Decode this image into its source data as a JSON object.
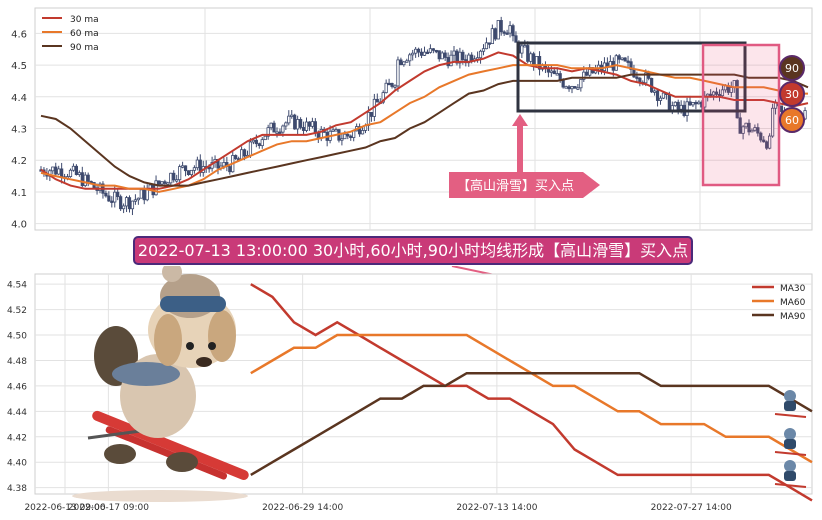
{
  "top_chart": {
    "legend": [
      "30 ma",
      "60 ma",
      "90 ma"
    ],
    "y_ticks": [
      4.0,
      4.1,
      4.2,
      4.3,
      4.4,
      4.5,
      4.6
    ],
    "ylim": [
      3.98,
      4.68
    ],
    "badges": [
      {
        "text": "90",
        "color": "#5a3520"
      },
      {
        "text": "30",
        "color": "#c23a2e"
      },
      {
        "text": "60",
        "color": "#e8782a"
      }
    ],
    "arrow_label": "【高山滑雪】买入点",
    "candles_count": 260
  },
  "banner_text": "2022-07-13 13:00:00 30小时,60小时,90小时均线形成【高山滑雪】买入点",
  "colors": {
    "ma30": "#c23a2e",
    "ma60": "#e8782a",
    "ma90": "#5a3520",
    "candle": "#3e4a6e",
    "accent": "#c93a78",
    "box": "#2f3340"
  },
  "chart_data": [
    {
      "type": "line",
      "title": "",
      "xlabel": "",
      "ylabel": "",
      "x_index": [
        0,
        5,
        10,
        15,
        20,
        25,
        30,
        35,
        40,
        45,
        50,
        55,
        60,
        65,
        70,
        75,
        80,
        85,
        90,
        95,
        100,
        105,
        110,
        115,
        120,
        125,
        130,
        135,
        140,
        145,
        150,
        155,
        160,
        165,
        170,
        175,
        180,
        185,
        190,
        195,
        200,
        205,
        210,
        215,
        220,
        225,
        230,
        235,
        240,
        245,
        250,
        255,
        260
      ],
      "series": [
        {
          "name": "30 ma",
          "values": [
            4.17,
            4.14,
            4.12,
            4.11,
            4.11,
            4.11,
            4.11,
            4.11,
            4.11,
            4.12,
            4.14,
            4.17,
            4.2,
            4.23,
            4.26,
            4.28,
            4.28,
            4.28,
            4.28,
            4.29,
            4.31,
            4.32,
            4.35,
            4.38,
            4.42,
            4.45,
            4.48,
            4.5,
            4.51,
            4.51,
            4.52,
            4.54,
            4.53,
            4.5,
            4.49,
            4.49,
            4.48,
            4.49,
            4.48,
            4.47,
            4.45,
            4.44,
            4.42,
            4.4,
            4.4,
            4.4,
            4.4,
            4.39,
            4.39,
            4.39,
            4.38,
            4.37,
            4.38
          ]
        },
        {
          "name": "60 ma",
          "values": [
            4.16,
            4.15,
            4.14,
            4.13,
            4.12,
            4.12,
            4.11,
            4.11,
            4.1,
            4.11,
            4.12,
            4.14,
            4.17,
            4.19,
            4.21,
            4.23,
            4.25,
            4.26,
            4.26,
            4.27,
            4.28,
            4.29,
            4.31,
            4.32,
            4.35,
            4.38,
            4.4,
            4.43,
            4.45,
            4.47,
            4.48,
            4.49,
            4.5,
            4.5,
            4.5,
            4.5,
            4.49,
            4.49,
            4.49,
            4.5,
            4.49,
            4.48,
            4.47,
            4.46,
            4.46,
            4.45,
            4.44,
            4.43,
            4.43,
            4.43,
            4.42,
            4.41,
            4.41
          ]
        },
        {
          "name": "90 ma",
          "values": [
            4.34,
            4.33,
            4.3,
            4.26,
            4.22,
            4.18,
            4.15,
            4.13,
            4.12,
            4.12,
            4.12,
            4.13,
            4.14,
            4.15,
            4.16,
            4.17,
            4.18,
            4.19,
            4.2,
            4.21,
            4.22,
            4.23,
            4.24,
            4.26,
            4.27,
            4.3,
            4.32,
            4.35,
            4.38,
            4.41,
            4.42,
            4.44,
            4.45,
            4.45,
            4.45,
            4.45,
            4.46,
            4.46,
            4.46,
            4.46,
            4.47,
            4.47,
            4.47,
            4.47,
            4.47,
            4.47,
            4.47,
            4.47,
            4.46,
            4.46,
            4.46,
            4.45,
            4.43
          ]
        }
      ]
    },
    {
      "type": "line",
      "title": "",
      "xlabel": "",
      "ylabel": "",
      "x_ticks": [
        "2022-06-13 09:00",
        "2022-06-17 09:00",
        "2022-06-29 14:00",
        "2022-07-13 14:00",
        "2022-07-27 14:00"
      ],
      "y_ticks": [
        4.38,
        4.4,
        4.42,
        4.44,
        4.46,
        4.48,
        4.5,
        4.52,
        4.54
      ],
      "ylim": [
        4.375,
        4.548
      ],
      "x_range": [
        0,
        180
      ],
      "legend": "top-right",
      "x_index": [
        50,
        55,
        60,
        65,
        70,
        75,
        80,
        85,
        90,
        95,
        100,
        105,
        110,
        115,
        120,
        125,
        130,
        135,
        140,
        145,
        150,
        155,
        160,
        165,
        170,
        175,
        180
      ],
      "series": [
        {
          "name": "MA30",
          "values": [
            4.54,
            4.53,
            4.51,
            4.5,
            4.51,
            4.5,
            4.49,
            4.48,
            4.47,
            4.46,
            4.46,
            4.45,
            4.45,
            4.44,
            4.43,
            4.41,
            4.4,
            4.39,
            4.39,
            4.39,
            4.39,
            4.39,
            4.39,
            4.39,
            4.39,
            4.38,
            4.37
          ]
        },
        {
          "name": "MA60",
          "values": [
            4.47,
            4.48,
            4.49,
            4.49,
            4.5,
            4.5,
            4.5,
            4.5,
            4.5,
            4.5,
            4.5,
            4.49,
            4.48,
            4.47,
            4.46,
            4.46,
            4.45,
            4.44,
            4.44,
            4.43,
            4.43,
            4.43,
            4.42,
            4.42,
            4.42,
            4.41,
            4.4
          ]
        },
        {
          "name": "MA90",
          "values": [
            4.39,
            4.4,
            4.41,
            4.42,
            4.43,
            4.44,
            4.45,
            4.45,
            4.46,
            4.46,
            4.47,
            4.47,
            4.47,
            4.47,
            4.47,
            4.47,
            4.47,
            4.47,
            4.47,
            4.46,
            4.46,
            4.46,
            4.46,
            4.46,
            4.46,
            4.45,
            4.44
          ]
        }
      ]
    }
  ]
}
